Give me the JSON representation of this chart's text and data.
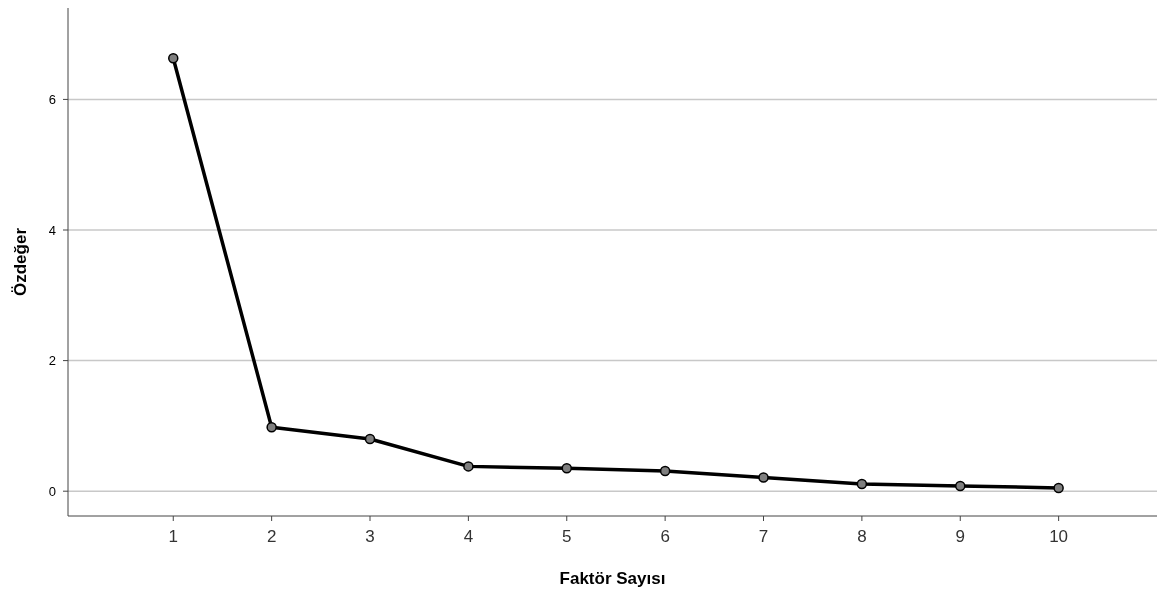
{
  "chart_data": {
    "type": "line",
    "xlabel": "Faktör Sayısı",
    "ylabel": "Özdeğer",
    "x": [
      1,
      2,
      3,
      4,
      5,
      6,
      7,
      8,
      9,
      10
    ],
    "series": [
      {
        "color": "#000000",
        "values": [
          6.63,
          0.98,
          0.8,
          0.38,
          0.35,
          0.31,
          0.21,
          0.11,
          0.08,
          0.05
        ]
      }
    ],
    "xlim": [
      -0.07,
      11
    ],
    "xticks": [
      1,
      2,
      3,
      4,
      5,
      6,
      7,
      8,
      9,
      10
    ],
    "ylim": [
      -0.38,
      7.4
    ],
    "yticks": [
      0,
      2,
      4,
      6
    ],
    "grid": "y",
    "marker": "circle",
    "line_style": "solid"
  }
}
